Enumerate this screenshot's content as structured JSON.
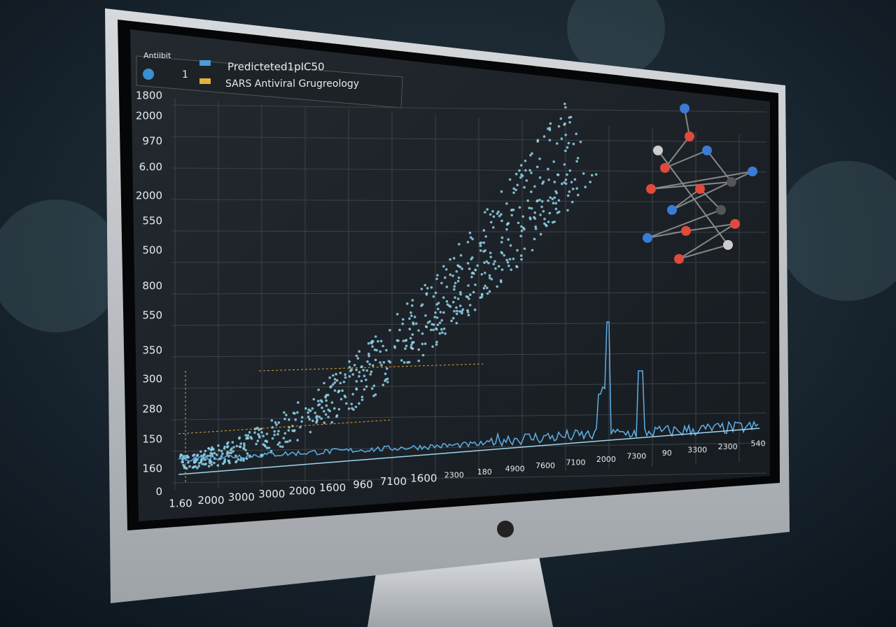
{
  "screen": {
    "toolbar": {
      "app_label": "Antiibit",
      "count": "1"
    },
    "legend": [
      "Predicteted1pIC50",
      "SARS Antiviral Grugreology"
    ],
    "y_labels": [
      "1800",
      "2000",
      "970",
      "6.00",
      "2000",
      "550",
      "500",
      "800",
      "550",
      "350",
      "300",
      "280",
      "150",
      "160",
      "0"
    ],
    "x_labels": [
      "1.60",
      "2000",
      "3000",
      "3000",
      "2000",
      "1600",
      "960",
      "7100",
      "1600",
      "2300",
      "180",
      "4900",
      "7600",
      "7100",
      "2000",
      "7300",
      "90",
      "3300",
      "2300",
      "540"
    ]
  }
}
